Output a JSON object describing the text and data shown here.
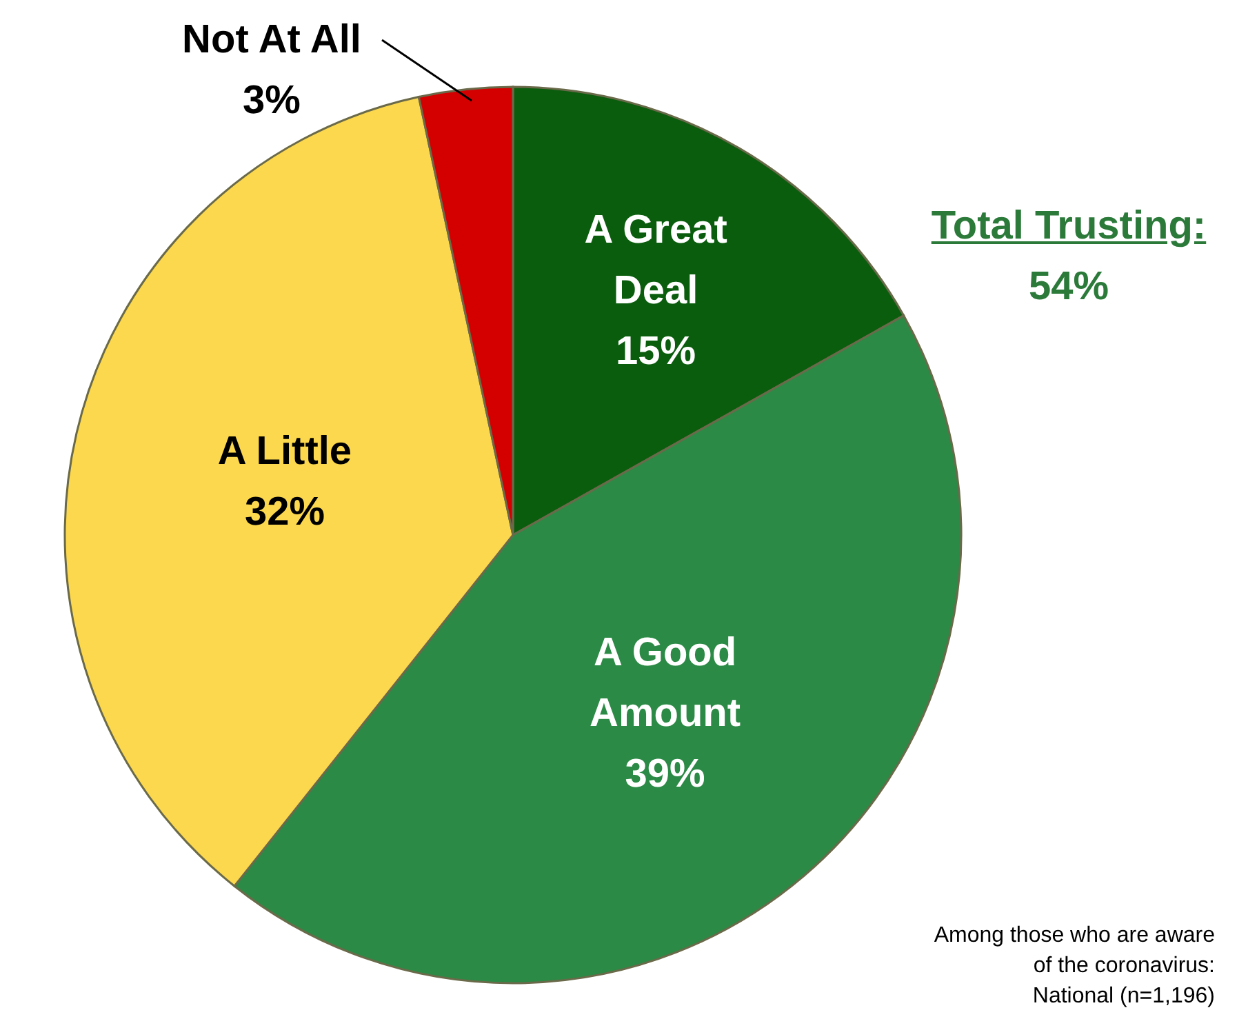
{
  "chart_data": {
    "type": "pie",
    "categories": [
      "A Great Deal",
      "A Good Amount",
      "A Little",
      "Not At All"
    ],
    "values": [
      15,
      39,
      32,
      3
    ],
    "value_labels": [
      "15%",
      "39%",
      "32%",
      "3%"
    ],
    "colors": [
      "#0b5d0e",
      "#2b8a45",
      "#fcd84e",
      "#d40000"
    ],
    "annotations": [
      "Total Trusting:",
      "54%",
      "Among those who are aware\nof the coronavirus:\nNational (n=1,196)"
    ]
  }
}
